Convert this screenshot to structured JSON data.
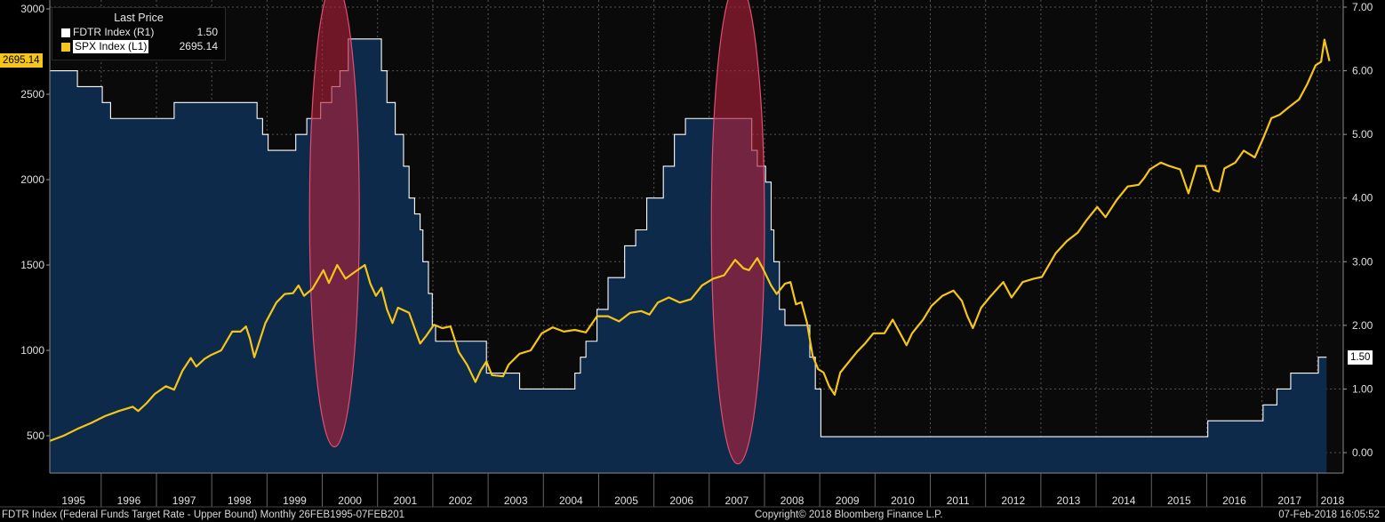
{
  "legend": {
    "header": "Last Price",
    "items": [
      {
        "name": "FDTR Index  (R1)",
        "value": "1.50",
        "color": "#ffffff"
      },
      {
        "name": "SPX Index  (L1)",
        "value": "2695.14",
        "color": "#f5c518"
      }
    ]
  },
  "last_values": {
    "spx": "2695.14",
    "fdtr": "1.50"
  },
  "footer": {
    "left": "FDTR Index (Federal Funds Target Rate - Upper Bound)  Monthly 26FEB1995-07FEB201",
    "center": "Copyright© 2018 Bloomberg Finance L.P.",
    "right": "07-Feb-2018 16:05:52"
  },
  "colors": {
    "spx": "#f5c518",
    "fdtr_fill": "#0e2a4a",
    "fdtr_line": "#ffffff",
    "highlight": "#b0203a",
    "background": "#000000"
  },
  "chart_data": {
    "type": "area+line",
    "x_ticks": [
      "1995",
      "1996",
      "1997",
      "1998",
      "1999",
      "2000",
      "2001",
      "2002",
      "2003",
      "2004",
      "2005",
      "2006",
      "2007",
      "2008",
      "2009",
      "2010",
      "2011",
      "2012",
      "2013",
      "2014",
      "2015",
      "2016",
      "2017",
      "2018"
    ],
    "left_axis": {
      "series": "SPX Index",
      "ylim": [
        300,
        3000
      ],
      "ticks": [
        "3000",
        "2500",
        "2000",
        "1500",
        "1000",
        "500"
      ]
    },
    "right_axis": {
      "series": "FDTR Index",
      "ylim": [
        -0.1,
        7.0
      ],
      "ticks": [
        "7.00",
        "6.00",
        "5.00",
        "4.00",
        "3.00",
        "2.00",
        "1.00",
        "0.00"
      ]
    },
    "series": [
      {
        "name": "FDTR Index",
        "axis": "right",
        "kind": "step-area",
        "points": [
          [
            1995.15,
            6.0
          ],
          [
            1995.5,
            5.75
          ],
          [
            1995.95,
            5.5
          ],
          [
            1996.1,
            5.25
          ],
          [
            1997.25,
            5.5
          ],
          [
            1998.75,
            5.25
          ],
          [
            1998.85,
            5.0
          ],
          [
            1998.95,
            4.75
          ],
          [
            1999.45,
            5.0
          ],
          [
            1999.65,
            5.25
          ],
          [
            1999.9,
            5.5
          ],
          [
            2000.1,
            5.75
          ],
          [
            2000.25,
            6.0
          ],
          [
            2000.4,
            6.5
          ],
          [
            2001.0,
            6.0
          ],
          [
            2001.1,
            5.5
          ],
          [
            2001.25,
            5.0
          ],
          [
            2001.4,
            4.5
          ],
          [
            2001.5,
            4.0
          ],
          [
            2001.6,
            3.75
          ],
          [
            2001.7,
            3.5
          ],
          [
            2001.75,
            3.0
          ],
          [
            2001.85,
            2.5
          ],
          [
            2001.92,
            2.0
          ],
          [
            2001.98,
            1.75
          ],
          [
            2002.9,
            1.25
          ],
          [
            2003.5,
            1.0
          ],
          [
            2004.5,
            1.25
          ],
          [
            2004.6,
            1.5
          ],
          [
            2004.7,
            1.75
          ],
          [
            2004.9,
            2.25
          ],
          [
            2005.1,
            2.75
          ],
          [
            2005.4,
            3.25
          ],
          [
            2005.6,
            3.5
          ],
          [
            2005.8,
            4.0
          ],
          [
            2006.1,
            4.5
          ],
          [
            2006.3,
            5.0
          ],
          [
            2006.5,
            5.25
          ],
          [
            2007.7,
            4.75
          ],
          [
            2007.8,
            4.5
          ],
          [
            2007.95,
            4.25
          ],
          [
            2008.05,
            3.5
          ],
          [
            2008.1,
            3.0
          ],
          [
            2008.2,
            2.25
          ],
          [
            2008.3,
            2.0
          ],
          [
            2008.75,
            1.5
          ],
          [
            2008.85,
            1.0
          ],
          [
            2008.95,
            0.25
          ],
          [
            2015.95,
            0.5
          ],
          [
            2016.95,
            0.75
          ],
          [
            2017.2,
            1.0
          ],
          [
            2017.45,
            1.25
          ],
          [
            2017.95,
            1.5
          ],
          [
            2018.1,
            1.5
          ]
        ]
      },
      {
        "name": "SPX Index",
        "axis": "left",
        "kind": "line",
        "points": [
          [
            1995.0,
            470
          ],
          [
            1995.25,
            500
          ],
          [
            1995.5,
            540
          ],
          [
            1995.75,
            575
          ],
          [
            1996.0,
            615
          ],
          [
            1996.25,
            645
          ],
          [
            1996.5,
            670
          ],
          [
            1996.6,
            645
          ],
          [
            1996.75,
            690
          ],
          [
            1996.9,
            745
          ],
          [
            1997.1,
            790
          ],
          [
            1997.25,
            770
          ],
          [
            1997.4,
            880
          ],
          [
            1997.55,
            955
          ],
          [
            1997.65,
            905
          ],
          [
            1997.8,
            950
          ],
          [
            1997.9,
            970
          ],
          [
            1998.1,
            1000
          ],
          [
            1998.3,
            1110
          ],
          [
            1998.45,
            1110
          ],
          [
            1998.55,
            1140
          ],
          [
            1998.62,
            1070
          ],
          [
            1998.7,
            960
          ],
          [
            1998.9,
            1160
          ],
          [
            1999.1,
            1280
          ],
          [
            1999.25,
            1330
          ],
          [
            1999.4,
            1335
          ],
          [
            1999.5,
            1380
          ],
          [
            1999.6,
            1320
          ],
          [
            1999.75,
            1360
          ],
          [
            1999.95,
            1470
          ],
          [
            2000.05,
            1395
          ],
          [
            2000.2,
            1500
          ],
          [
            2000.35,
            1420
          ],
          [
            2000.5,
            1455
          ],
          [
            2000.7,
            1500
          ],
          [
            2000.8,
            1390
          ],
          [
            2000.9,
            1320
          ],
          [
            2001.0,
            1366
          ],
          [
            2001.1,
            1240
          ],
          [
            2001.2,
            1160
          ],
          [
            2001.3,
            1250
          ],
          [
            2001.5,
            1220
          ],
          [
            2001.7,
            1040
          ],
          [
            2001.8,
            1080
          ],
          [
            2001.95,
            1150
          ],
          [
            2002.1,
            1130
          ],
          [
            2002.25,
            1140
          ],
          [
            2002.4,
            990
          ],
          [
            2002.55,
            915
          ],
          [
            2002.7,
            815
          ],
          [
            2002.8,
            885
          ],
          [
            2002.9,
            935
          ],
          [
            2003.0,
            855
          ],
          [
            2003.2,
            848
          ],
          [
            2003.3,
            916
          ],
          [
            2003.5,
            980
          ],
          [
            2003.7,
            1000
          ],
          [
            2003.9,
            1100
          ],
          [
            2004.1,
            1135
          ],
          [
            2004.3,
            1110
          ],
          [
            2004.5,
            1120
          ],
          [
            2004.7,
            1105
          ],
          [
            2004.9,
            1200
          ],
          [
            2005.1,
            1200
          ],
          [
            2005.3,
            1170
          ],
          [
            2005.5,
            1220
          ],
          [
            2005.7,
            1230
          ],
          [
            2005.85,
            1210
          ],
          [
            2006.0,
            1280
          ],
          [
            2006.2,
            1310
          ],
          [
            2006.4,
            1280
          ],
          [
            2006.6,
            1300
          ],
          [
            2006.8,
            1380
          ],
          [
            2007.0,
            1420
          ],
          [
            2007.2,
            1440
          ],
          [
            2007.4,
            1530
          ],
          [
            2007.55,
            1480
          ],
          [
            2007.65,
            1470
          ],
          [
            2007.8,
            1540
          ],
          [
            2007.9,
            1480
          ],
          [
            2008.05,
            1380
          ],
          [
            2008.15,
            1330
          ],
          [
            2008.3,
            1390
          ],
          [
            2008.4,
            1400
          ],
          [
            2008.5,
            1270
          ],
          [
            2008.6,
            1282
          ],
          [
            2008.7,
            1160
          ],
          [
            2008.8,
            970
          ],
          [
            2008.9,
            890
          ],
          [
            2009.0,
            870
          ],
          [
            2009.1,
            790
          ],
          [
            2009.2,
            740
          ],
          [
            2009.3,
            870
          ],
          [
            2009.45,
            930
          ],
          [
            2009.6,
            990
          ],
          [
            2009.75,
            1040
          ],
          [
            2009.9,
            1100
          ],
          [
            2010.1,
            1100
          ],
          [
            2010.25,
            1180
          ],
          [
            2010.4,
            1090
          ],
          [
            2010.5,
            1030
          ],
          [
            2010.6,
            1100
          ],
          [
            2010.8,
            1180
          ],
          [
            2010.95,
            1260
          ],
          [
            2011.15,
            1320
          ],
          [
            2011.35,
            1350
          ],
          [
            2011.5,
            1290
          ],
          [
            2011.6,
            1200
          ],
          [
            2011.7,
            1130
          ],
          [
            2011.85,
            1250
          ],
          [
            2012.0,
            1310
          ],
          [
            2012.25,
            1400
          ],
          [
            2012.4,
            1310
          ],
          [
            2012.6,
            1400
          ],
          [
            2012.8,
            1420
          ],
          [
            2012.95,
            1430
          ],
          [
            2013.2,
            1570
          ],
          [
            2013.4,
            1640
          ],
          [
            2013.6,
            1690
          ],
          [
            2013.75,
            1760
          ],
          [
            2013.95,
            1840
          ],
          [
            2014.1,
            1780
          ],
          [
            2014.3,
            1880
          ],
          [
            2014.5,
            1960
          ],
          [
            2014.7,
            1970
          ],
          [
            2014.8,
            2010
          ],
          [
            2014.9,
            2060
          ],
          [
            2015.1,
            2100
          ],
          [
            2015.25,
            2080
          ],
          [
            2015.45,
            2060
          ],
          [
            2015.6,
            1920
          ],
          [
            2015.75,
            2080
          ],
          [
            2015.9,
            2080
          ],
          [
            2016.05,
            1940
          ],
          [
            2016.15,
            1930
          ],
          [
            2016.25,
            2065
          ],
          [
            2016.45,
            2100
          ],
          [
            2016.6,
            2170
          ],
          [
            2016.8,
            2130
          ],
          [
            2016.95,
            2240
          ],
          [
            2017.1,
            2360
          ],
          [
            2017.25,
            2380
          ],
          [
            2017.4,
            2420
          ],
          [
            2017.6,
            2470
          ],
          [
            2017.75,
            2560
          ],
          [
            2017.9,
            2670
          ],
          [
            2018.0,
            2690
          ],
          [
            2018.06,
            2820
          ],
          [
            2018.15,
            2695
          ]
        ]
      }
    ],
    "highlights": [
      {
        "x_center": 2000.15,
        "x_halfwidth": 0.45,
        "y_top_left": 3000,
        "y_bottom_left": 435
      },
      {
        "x_center": 2007.45,
        "x_halfwidth": 0.48,
        "y_top_left": 3000,
        "y_bottom_left": 335
      }
    ]
  }
}
